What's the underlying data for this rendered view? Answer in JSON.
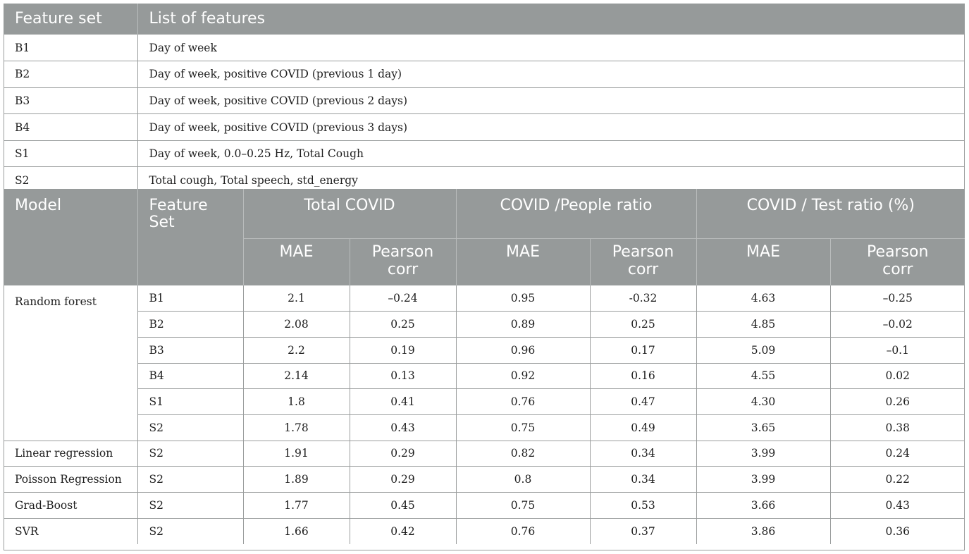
{
  "feature_table": {
    "headers": [
      "Feature set",
      "List of features"
    ],
    "rows": [
      {
        "set": "B1",
        "features": "Day of week"
      },
      {
        "set": "B2",
        "features": "Day of week, positive COVID (previous 1 day)"
      },
      {
        "set": "B3",
        "features": "Day of week, positive COVID (previous 2 days)"
      },
      {
        "set": "B4",
        "features": "Day of week, positive COVID (previous 3 days)"
      },
      {
        "set": "S1",
        "features": "Day of week, 0.0–0.25 Hz, Total Cough"
      },
      {
        "set": "S2",
        "features": "Total cough, Total speech, std_energy"
      }
    ]
  },
  "results_table": {
    "header": {
      "model": "Model",
      "feature_set_line1": "Feature",
      "feature_set_line2": "Set",
      "groups": [
        "Total COVID",
        "COVID /People ratio",
        "COVID / Test ratio (%)"
      ],
      "mae": "MAE",
      "pearson_line1": "Pearson",
      "pearson_line2": "corr"
    },
    "random_forest": "Random forest",
    "rf_rows": [
      {
        "set": "B1",
        "v": [
          "2.1",
          "–0.24",
          "0.95",
          "-0.32",
          "4.63",
          "–0.25"
        ]
      },
      {
        "set": "B2",
        "v": [
          "2.08",
          "0.25",
          "0.89",
          "0.25",
          "4.85",
          "–0.02"
        ]
      },
      {
        "set": "B3",
        "v": [
          "2.2",
          "0.19",
          "0.96",
          "0.17",
          "5.09",
          "–0.1"
        ]
      },
      {
        "set": "B4",
        "v": [
          "2.14",
          "0.13",
          "0.92",
          "0.16",
          "4.55",
          "0.02"
        ]
      },
      {
        "set": "S1",
        "v": [
          "1.8",
          "0.41",
          "0.76",
          "0.47",
          "4.30",
          "0.26"
        ]
      },
      {
        "set": "S2",
        "v": [
          "1.78",
          "0.43",
          "0.75",
          "0.49",
          "3.65",
          "0.38"
        ]
      }
    ],
    "other_rows": [
      {
        "model": "Linear regression",
        "set": "S2",
        "v": [
          "1.91",
          "0.29",
          "0.82",
          "0.34",
          "3.99",
          "0.24"
        ]
      },
      {
        "model": "Poisson Regression",
        "set": "S2",
        "v": [
          "1.89",
          "0.29",
          "0.8",
          "0.34",
          "3.99",
          "0.22"
        ]
      },
      {
        "model": "Grad-Boost",
        "set": "S2",
        "v": [
          "1.77",
          "0.45",
          "0.75",
          "0.53",
          "3.66",
          "0.43"
        ]
      },
      {
        "model": "SVR",
        "set": "S2",
        "v": [
          "1.66",
          "0.42",
          "0.76",
          "0.37",
          "3.86",
          "0.36"
        ]
      }
    ]
  }
}
